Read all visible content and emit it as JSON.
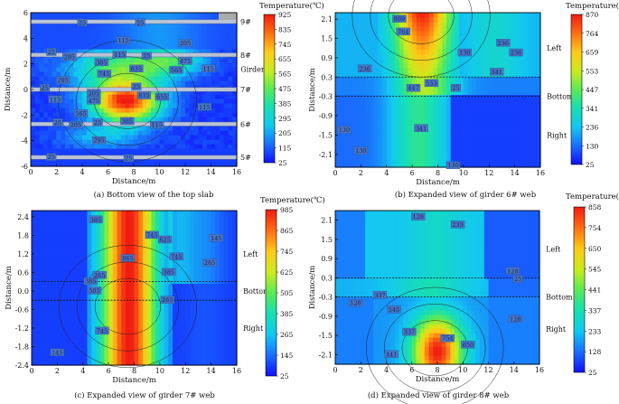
{
  "chart_data": [
    {
      "type": "heatmap",
      "id": "a",
      "caption": "(a)  Bottom view of the top slab",
      "xlabel": "Distance/m",
      "ylabel": "Distance/m",
      "xlim": [
        0,
        16
      ],
      "ylim": [
        -6,
        6
      ],
      "xticks": [
        "0",
        "2",
        "4",
        "6",
        "8",
        "10",
        "12",
        "14",
        "16"
      ],
      "yticks": [
        "6",
        "4",
        "2",
        "0",
        "-2",
        "-4",
        "-6"
      ],
      "colorbar": {
        "title": "Temperature(℃)",
        "min": 25,
        "max": 925,
        "ticks": [
          "925",
          "835",
          "745",
          "655",
          "565",
          "475",
          "385",
          "295",
          "205",
          "115",
          "25"
        ]
      },
      "hotspot": {
        "x": 7.5,
        "y": -0.9,
        "peak": 925
      },
      "girders": [
        {
          "name": "9#",
          "y": 5.3
        },
        {
          "name": "8#",
          "y": 2.7
        },
        {
          "name": "7#",
          "y": 0.0
        },
        {
          "name": "6#",
          "y": -2.7
        },
        {
          "name": "5#",
          "y": -5.3
        }
      ],
      "side_labels": [
        {
          "text": "Girder",
          "x": 16.3,
          "y": 1.6
        }
      ],
      "contour_labels": [
        {
          "text": "25",
          "x": 4.0,
          "y": 5.2
        },
        {
          "text": "25",
          "x": 8.5,
          "y": 5.2
        },
        {
          "text": "115",
          "x": 7.2,
          "y": 3.8
        },
        {
          "text": "205",
          "x": 12.0,
          "y": 3.6
        },
        {
          "text": "25",
          "x": 1.6,
          "y": 2.9
        },
        {
          "text": "115",
          "x": 6.9,
          "y": 2.7
        },
        {
          "text": "25",
          "x": 9.0,
          "y": 2.6
        },
        {
          "text": "295",
          "x": 3.0,
          "y": 2.5
        },
        {
          "text": "475",
          "x": 12.0,
          "y": 2.2
        },
        {
          "text": "385",
          "x": 5.5,
          "y": 2.1
        },
        {
          "text": "835",
          "x": 8.2,
          "y": 1.6
        },
        {
          "text": "565",
          "x": 11.3,
          "y": 1.5
        },
        {
          "text": "115",
          "x": 13.8,
          "y": 1.6
        },
        {
          "text": "745",
          "x": 5.7,
          "y": 1.2
        },
        {
          "text": "205",
          "x": 2.5,
          "y": 0.7
        },
        {
          "text": "25",
          "x": 1.1,
          "y": 0.1
        },
        {
          "text": "25",
          "x": 8.2,
          "y": 0.2
        },
        {
          "text": "205",
          "x": 4.9,
          "y": -0.3
        },
        {
          "text": "835",
          "x": 8.8,
          "y": -0.5
        },
        {
          "text": "655",
          "x": 10.2,
          "y": -0.6
        },
        {
          "text": "115",
          "x": 1.9,
          "y": -0.8
        },
        {
          "text": "475",
          "x": 4.9,
          "y": -0.9
        },
        {
          "text": "115",
          "x": 13.5,
          "y": -1.4
        },
        {
          "text": "565",
          "x": 3.9,
          "y": -1.9
        },
        {
          "text": "25",
          "x": 2.1,
          "y": -2.6
        },
        {
          "text": "205",
          "x": 3.5,
          "y": -2.8
        },
        {
          "text": "25",
          "x": 5.2,
          "y": -2.6
        },
        {
          "text": "385",
          "x": 7.5,
          "y": -2.5
        },
        {
          "text": "115",
          "x": 9.8,
          "y": -2.8
        },
        {
          "text": "295",
          "x": 5.3,
          "y": -4.0
        },
        {
          "text": "25",
          "x": 1.6,
          "y": -5.3
        },
        {
          "text": "25",
          "x": 7.6,
          "y": -5.4
        }
      ]
    },
    {
      "type": "heatmap",
      "id": "b",
      "caption": "(b)  Expanded view of girder 6# web",
      "xlabel": "Distance/m",
      "ylabel": "Distance/m",
      "xlim": [
        0,
        16
      ],
      "ylim": [
        -2.5,
        2.3
      ],
      "xticks": [
        "0",
        "2",
        "4",
        "6",
        "8",
        "10",
        "12",
        "14",
        "16"
      ],
      "yticks": [
        "2.1",
        "1.5",
        "0.9",
        "0.3",
        "-0.3",
        "-0.9",
        "-1.5",
        "-2.1"
      ],
      "colorbar": {
        "title": "Temperature(℃)",
        "min": 25,
        "max": 870,
        "ticks": [
          "870",
          "764",
          "659",
          "553",
          "447",
          "341",
          "236",
          "130",
          "25"
        ]
      },
      "hotspot": {
        "x": 6.7,
        "y": 2.2,
        "peak": 870
      },
      "band_edges": [
        0.3,
        -0.3
      ],
      "side_labels": [
        {
          "text": "Left",
          "x": 16.5,
          "y": 1.2
        },
        {
          "text": "Bottom",
          "x": 16.5,
          "y": -0.3
        },
        {
          "text": "Right",
          "x": 16.5,
          "y": -1.5
        }
      ],
      "contour_labels": [
        {
          "text": "869",
          "x": 5.0,
          "y": 2.1
        },
        {
          "text": "764",
          "x": 5.3,
          "y": 1.7
        },
        {
          "text": "236",
          "x": 13.1,
          "y": 1.35
        },
        {
          "text": "130",
          "x": 10.1,
          "y": 1.05
        },
        {
          "text": "236",
          "x": 14.1,
          "y": 1.05
        },
        {
          "text": "236",
          "x": 2.3,
          "y": 0.55
        },
        {
          "text": "341",
          "x": 12.6,
          "y": 0.45
        },
        {
          "text": "553",
          "x": 7.5,
          "y": 0.1
        },
        {
          "text": "447",
          "x": 6.1,
          "y": -0.05
        },
        {
          "text": "25",
          "x": 9.4,
          "y": -0.05
        },
        {
          "text": "341",
          "x": 6.7,
          "y": -1.3
        },
        {
          "text": "130",
          "x": 0.7,
          "y": -1.35
        },
        {
          "text": "130",
          "x": 2.0,
          "y": -2.0
        },
        {
          "text": "130",
          "x": 9.2,
          "y": -2.45
        }
      ]
    },
    {
      "type": "heatmap",
      "id": "c",
      "caption": "(c)  Expanded view of  girder 7# web",
      "xlabel": "Distance/m",
      "ylabel": "Distance/m",
      "xlim": [
        0,
        16
      ],
      "ylim": [
        -2.4,
        2.6
      ],
      "xticks": [
        "0",
        "2",
        "4",
        "6",
        "8",
        "10",
        "12",
        "14",
        "16"
      ],
      "yticks": [
        "2.4",
        "1.8",
        "1.2",
        "0.6",
        "0.0",
        "-0.6",
        "-1.2",
        "-1.8",
        "-2.4"
      ],
      "colorbar": {
        "title": "Temperature(℃)",
        "min": 25,
        "max": 985,
        "ticks": [
          "985",
          "865",
          "745",
          "625",
          "505",
          "385",
          "265",
          "145",
          "25"
        ]
      },
      "hotspot": {
        "x": 7.5,
        "y": -0.5,
        "peak": 985
      },
      "band_edges": [
        0.3,
        -0.3
      ],
      "side_labels": [
        {
          "text": "Left",
          "x": 16.5,
          "y": 1.2
        },
        {
          "text": "Bottom",
          "x": 16.5,
          "y": 0.0
        },
        {
          "text": "Right",
          "x": 16.5,
          "y": -1.2
        }
      ],
      "contour_labels": [
        {
          "text": "385",
          "x": 5.0,
          "y": 2.3
        },
        {
          "text": "745",
          "x": 9.4,
          "y": 1.8
        },
        {
          "text": "625",
          "x": 10.4,
          "y": 1.65
        },
        {
          "text": "145",
          "x": 14.4,
          "y": 1.7
        },
        {
          "text": "865",
          "x": 7.5,
          "y": 1.05
        },
        {
          "text": "745",
          "x": 11.3,
          "y": 1.1
        },
        {
          "text": "265",
          "x": 13.9,
          "y": 0.9
        },
        {
          "text": "385",
          "x": 10.7,
          "y": 0.6
        },
        {
          "text": "265",
          "x": 5.3,
          "y": 0.5
        },
        {
          "text": "385",
          "x": 4.6,
          "y": 0.3
        },
        {
          "text": "505",
          "x": 4.9,
          "y": 0.0
        },
        {
          "text": "265",
          "x": 10.6,
          "y": -0.3
        },
        {
          "text": "745",
          "x": 5.5,
          "y": -1.3
        },
        {
          "text": "145",
          "x": 2.0,
          "y": -2.0
        }
      ]
    },
    {
      "type": "heatmap",
      "id": "d",
      "caption": "(d)  Expanded view of girder 8# web",
      "xlabel": "Distance/m",
      "ylabel": "Distance/m",
      "xlim": [
        0,
        16
      ],
      "ylim": [
        -2.4,
        2.4
      ],
      "xticks": [
        "0",
        "2",
        "4",
        "6",
        "8",
        "10",
        "12",
        "14",
        "16"
      ],
      "yticks": [
        "2.1",
        "1.5",
        "0.9",
        "0.3",
        "-0.3",
        "-0.9",
        "-1.5",
        "-2.1"
      ],
      "colorbar": {
        "title": "Temperature( ℃)",
        "min": 25,
        "max": 858,
        "ticks": [
          "858",
          "754",
          "650",
          "545",
          "441",
          "337",
          "233",
          "128",
          "25"
        ]
      },
      "hotspot": {
        "x": 7.8,
        "y": -1.9,
        "peak": 858
      },
      "band_edges": [
        0.3,
        -0.3
      ],
      "side_labels": [
        {
          "text": "Left",
          "x": 16.5,
          "y": 1.2
        },
        {
          "text": "Bottom",
          "x": 16.5,
          "y": -0.3
        },
        {
          "text": "Right",
          "x": 16.5,
          "y": -1.3
        }
      ],
      "contour_labels": [
        {
          "text": "128",
          "x": 6.5,
          "y": 2.2
        },
        {
          "text": "233",
          "x": 9.6,
          "y": 1.95
        },
        {
          "text": "128",
          "x": 13.9,
          "y": 0.5
        },
        {
          "text": "25",
          "x": 14.3,
          "y": 0.25
        },
        {
          "text": "337",
          "x": 3.5,
          "y": -0.25
        },
        {
          "text": "128",
          "x": 1.6,
          "y": -0.5
        },
        {
          "text": "545",
          "x": 4.6,
          "y": -0.7
        },
        {
          "text": "128",
          "x": 14.1,
          "y": -1.0
        },
        {
          "text": "337",
          "x": 5.8,
          "y": -1.4
        },
        {
          "text": "754",
          "x": 8.8,
          "y": -1.6
        },
        {
          "text": "650",
          "x": 10.4,
          "y": -1.8
        },
        {
          "text": "441",
          "x": 4.4,
          "y": -2.1
        }
      ]
    }
  ]
}
